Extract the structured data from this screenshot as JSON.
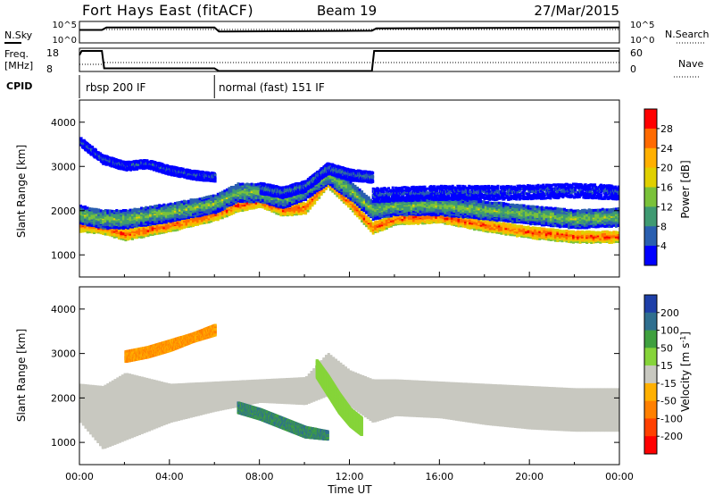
{
  "header": {
    "site": "Fort Hays East (fitACF)",
    "beam": "Beam 19",
    "date": "27/Mar/2015"
  },
  "top_panels": {
    "nsky_label": "N.Sky",
    "nsky_ticks": [
      "10^5",
      "10^0"
    ],
    "nsearch_label": "N.Search",
    "nsearch_ticks": [
      "10^5",
      "10^0"
    ],
    "freq_label_1": "Freq.",
    "freq_label_2": "[MHz]",
    "freq_ticks": [
      "18",
      "8"
    ],
    "nave_label": "Nave",
    "nave_ticks": [
      "60",
      "0"
    ],
    "cpid_label": "CPID",
    "modes": [
      {
        "label": "rbsp 200 IF",
        "start": 0,
        "end": 6
      },
      {
        "label": "normal (fast) 151 IF",
        "start": 6,
        "end": 24
      }
    ]
  },
  "axes": {
    "ylabel": "Slant Range [km]",
    "yticks": [
      "4000",
      "3000",
      "2000",
      "1000"
    ],
    "xlabel": "Time UT",
    "xticks": [
      "00:00",
      "04:00",
      "08:00",
      "12:00",
      "16:00",
      "20:00",
      "00:00"
    ]
  },
  "colorbars": {
    "power": {
      "label": "Power [dB]",
      "ticks": [
        "28",
        "24",
        "20",
        "16",
        "12",
        "8",
        "4"
      ],
      "colors": [
        "#ff0000",
        "#ff6a00",
        "#ffb000",
        "#e0d000",
        "#7ac23a",
        "#3f9a72",
        "#2a5fb0",
        "#0000ff"
      ]
    },
    "velocity": {
      "label_main": "Velocity [m s",
      "label_sup": "-1",
      "label_end": "]",
      "ticks": [
        "200",
        "100",
        "50",
        "15",
        "-15",
        "-50",
        "-100",
        "-200"
      ],
      "colors": [
        "#1e3fa8",
        "#2f6f8f",
        "#3fa03f",
        "#86d43a",
        "#c8c8c0",
        "#ffb000",
        "#ff8000",
        "#ff4000",
        "#ff0000"
      ]
    }
  },
  "chart_data": [
    {
      "type": "heatmap",
      "title": "Power",
      "xlabel": "Time UT",
      "ylabel": "Slant Range [km]",
      "xlim": [
        0,
        24
      ],
      "ylim": [
        500,
        4500
      ],
      "clim": [
        0,
        32
      ],
      "bands": [
        {
          "x": [
            0,
            1,
            2,
            4,
            6,
            7,
            8,
            9,
            10,
            11,
            12,
            13,
            14,
            16,
            18,
            20,
            22,
            24
          ],
          "y": [
            1700,
            1650,
            1500,
            1700,
            1950,
            2150,
            2250,
            2050,
            2100,
            2700,
            2200,
            1650,
            1850,
            1900,
            1700,
            1550,
            1450,
            1450
          ],
          "width_km": 260,
          "dB": 28
        },
        {
          "x": [
            0,
            1,
            2,
            4,
            6,
            7,
            8,
            9,
            10,
            11,
            12,
            13,
            14,
            16,
            18,
            20,
            22,
            24
          ],
          "y": [
            1950,
            1850,
            1850,
            2000,
            2200,
            2450,
            2450,
            2300,
            2500,
            2850,
            2500,
            2050,
            2150,
            2150,
            2050,
            1950,
            1850,
            1900
          ],
          "width_km": 420,
          "dB": 14
        },
        {
          "x": [
            0,
            1,
            2,
            3,
            4,
            5,
            6
          ],
          "y": [
            3600,
            3200,
            3050,
            3100,
            2950,
            2850,
            2800
          ],
          "width_km": 200,
          "dB": 6
        },
        {
          "x": [
            8,
            9,
            10,
            11,
            12,
            13
          ],
          "y": [
            2550,
            2450,
            2600,
            3000,
            2850,
            2800
          ],
          "width_km": 250,
          "dB": 8
        },
        {
          "x": [
            13,
            16,
            19,
            22,
            24
          ],
          "y": [
            2400,
            2450,
            2450,
            2500,
            2450
          ],
          "width_km": 320,
          "dB": 6
        }
      ]
    },
    {
      "type": "heatmap",
      "title": "Velocity",
      "xlabel": "Time UT",
      "ylabel": "Slant Range [km]",
      "xlim": [
        0,
        24
      ],
      "ylim": [
        500,
        4500
      ],
      "clim": [
        -200,
        200
      ],
      "regions": [
        {
          "x": [
            0,
            1,
            2,
            4,
            6,
            8,
            10,
            11,
            12,
            13,
            14,
            16,
            18,
            20,
            22,
            24
          ],
          "ylow": [
            1500,
            900,
            1100,
            1500,
            1750,
            1950,
            1900,
            2100,
            1850,
            1500,
            1650,
            1600,
            1450,
            1350,
            1300,
            1300
          ],
          "yhigh": [
            2350,
            2300,
            2600,
            2350,
            2400,
            2450,
            2500,
            3050,
            2650,
            2450,
            2450,
            2400,
            2350,
            2300,
            2250,
            2250
          ],
          "velocity": 0
        },
        {
          "x": [
            10.5,
            11,
            11.5,
            12,
            12.5
          ],
          "ylow": [
            2500,
            2100,
            1700,
            1400,
            1200
          ],
          "yhigh": [
            2900,
            2550,
            2150,
            1800,
            1600
          ],
          "velocity": 25
        },
        {
          "x": [
            2,
            3,
            4,
            5,
            6
          ],
          "ylow": [
            2850,
            2950,
            3100,
            3300,
            3450
          ],
          "yhigh": [
            3100,
            3200,
            3350,
            3500,
            3700
          ],
          "velocity": -50
        },
        {
          "x": [
            7,
            8,
            9,
            10,
            11
          ],
          "ylow": [
            1700,
            1550,
            1350,
            1150,
            1100
          ],
          "yhigh": [
            1950,
            1800,
            1600,
            1400,
            1300
          ],
          "velocity": 100
        }
      ]
    },
    {
      "type": "line",
      "title": "N.Sky / Freq.",
      "xlim": [
        0,
        24
      ],
      "series": [
        {
          "name": "N.Sky",
          "x": [
            0,
            1,
            1.2,
            6,
            6.2,
            13,
            13.2,
            24
          ],
          "y": [
            3,
            3,
            3.6,
            3.6,
            2.6,
            2.8,
            3.4,
            3.6
          ]
        },
        {
          "name": "Freq.",
          "x": [
            0,
            0.1,
            1,
            1.1,
            6,
            6.2,
            13,
            13.1,
            24
          ],
          "y": [
            16,
            18,
            18,
            9.5,
            9.5,
            8.2,
            8.2,
            18,
            18
          ]
        }
      ]
    }
  ]
}
